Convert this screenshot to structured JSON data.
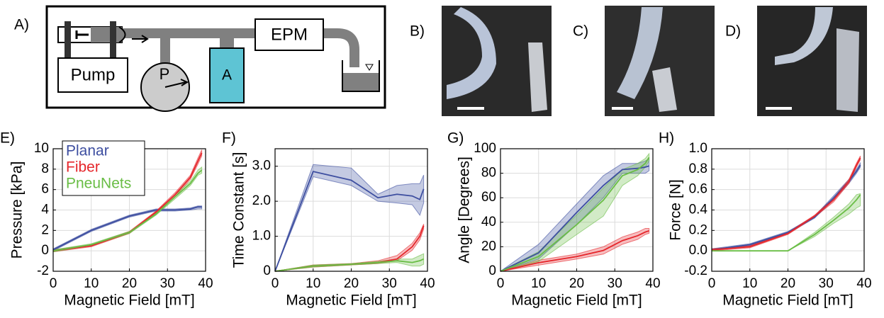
{
  "figure": {
    "diagram": {
      "panel": "A)",
      "pump": "Pump",
      "pressure": "P",
      "accumulator": "A",
      "magnet": "EPM"
    },
    "photos": [
      {
        "panel": "B)"
      },
      {
        "panel": "C)"
      },
      {
        "panel": "D)"
      }
    ]
  },
  "chart_data": [
    {
      "type": "line",
      "panel": "E)",
      "xlabel": "Magnetic Field [mT]",
      "ylabel": "Pressure [kPa]",
      "x": [
        0,
        10,
        20,
        27,
        32,
        36,
        38,
        39
      ],
      "xlim": [
        0,
        40
      ],
      "xticks": [
        0,
        10,
        20,
        30,
        40
      ],
      "ylim": [
        -2,
        10
      ],
      "yticks": [
        -2,
        0,
        2,
        4,
        6,
        8,
        10
      ],
      "grid": true,
      "legend": "upper left",
      "series": [
        {
          "name": "Planar",
          "color": "#3d4ea0",
          "values": [
            0.1,
            2.0,
            3.4,
            4.0,
            4.0,
            4.1,
            4.3,
            4.3
          ],
          "lower": [
            0,
            1.9,
            3.3,
            3.9,
            3.9,
            4.0,
            4.1,
            4.1
          ],
          "upper": [
            0.2,
            2.1,
            3.5,
            4.1,
            4.1,
            4.2,
            4.4,
            4.4
          ]
        },
        {
          "name": "Fiber",
          "color": "#e5262b",
          "values": [
            0,
            0.5,
            1.8,
            3.8,
            5.5,
            7.2,
            8.8,
            9.6
          ],
          "lower": [
            -0.1,
            0.4,
            1.7,
            3.7,
            5.3,
            7.0,
            8.5,
            9.3
          ],
          "upper": [
            0.1,
            0.6,
            1.9,
            3.9,
            5.7,
            7.4,
            9.1,
            9.9
          ]
        },
        {
          "name": "PneuNets",
          "color": "#69bd45",
          "values": [
            0,
            0.6,
            1.8,
            3.6,
            5.3,
            6.6,
            7.6,
            7.9
          ],
          "lower": [
            -0.1,
            0.5,
            1.7,
            3.5,
            5.1,
            6.4,
            7.4,
            7.6
          ],
          "upper": [
            0.1,
            0.7,
            1.9,
            3.7,
            5.5,
            6.8,
            7.9,
            8.2
          ]
        }
      ]
    },
    {
      "type": "line",
      "panel": "F)",
      "xlabel": "Magnetic Field [mT]",
      "ylabel": "Time Constant [s]",
      "x": [
        0,
        10,
        20,
        27,
        32,
        36,
        38,
        39
      ],
      "xlim": [
        0,
        40
      ],
      "xticks": [
        0,
        10,
        20,
        30,
        40
      ],
      "ylim": [
        0,
        3.5
      ],
      "yticks": [
        0,
        {
          "value": 1,
          "label": "1.0"
        },
        {
          "value": 2,
          "label": "2.0"
        },
        {
          "value": 3,
          "label": "3.0"
        }
      ],
      "grid": true,
      "series": [
        {
          "name": "Planar",
          "color": "#3d4ea0",
          "values": [
            0,
            2.85,
            2.6,
            2.1,
            2.2,
            2.15,
            2.05,
            2.35
          ],
          "lower": [
            0,
            2.7,
            2.45,
            2.0,
            1.95,
            1.9,
            1.6,
            1.95
          ],
          "upper": [
            0,
            3.05,
            2.95,
            2.2,
            2.45,
            2.5,
            2.5,
            2.75
          ]
        },
        {
          "name": "Fiber",
          "color": "#e5262b",
          "values": [
            0,
            0.15,
            0.2,
            0.25,
            0.35,
            0.7,
            1.0,
            1.3
          ],
          "lower": [
            0,
            0.12,
            0.18,
            0.22,
            0.3,
            0.6,
            0.9,
            1.2
          ],
          "upper": [
            0,
            0.18,
            0.22,
            0.3,
            0.45,
            0.8,
            1.1,
            1.35
          ]
        },
        {
          "name": "PneuNets",
          "color": "#69bd45",
          "values": [
            0,
            0.15,
            0.2,
            0.25,
            0.3,
            0.25,
            0.3,
            0.35
          ],
          "lower": [
            0,
            0.12,
            0.18,
            0.22,
            0.25,
            0.15,
            0.15,
            0.2
          ],
          "upper": [
            0,
            0.18,
            0.22,
            0.28,
            0.35,
            0.35,
            0.45,
            0.5
          ]
        }
      ]
    },
    {
      "type": "line",
      "panel": "G)",
      "xlabel": "Magnetic Field [mT]",
      "ylabel": "Angle [Degrees]",
      "x": [
        0,
        10,
        20,
        27,
        32,
        36,
        38,
        39
      ],
      "xlim": [
        0,
        40
      ],
      "xticks": [
        0,
        10,
        20,
        30,
        40
      ],
      "ylim": [
        0,
        100
      ],
      "yticks": [
        0,
        20,
        40,
        60,
        80,
        100
      ],
      "grid": true,
      "series": [
        {
          "name": "Planar",
          "color": "#3d4ea0",
          "values": [
            0,
            15,
            48,
            70,
            83,
            84,
            85,
            86
          ],
          "lower": [
            0,
            10,
            38,
            60,
            80,
            80,
            80,
            82
          ],
          "upper": [
            0,
            22,
            55,
            78,
            88,
            88,
            90,
            92
          ]
        },
        {
          "name": "Fiber",
          "color": "#e5262b",
          "values": [
            0,
            7,
            12,
            17,
            25,
            29,
            32,
            33
          ],
          "lower": [
            0,
            5,
            10,
            14,
            22,
            26,
            30,
            31
          ],
          "upper": [
            0,
            9,
            14,
            20,
            28,
            32,
            35,
            35
          ]
        },
        {
          "name": "PneuNets",
          "color": "#69bd45",
          "values": [
            0,
            12,
            38,
            58,
            78,
            83,
            88,
            93
          ],
          "lower": [
            0,
            8,
            30,
            45,
            70,
            78,
            85,
            90
          ],
          "upper": [
            0,
            16,
            46,
            68,
            83,
            88,
            92,
            96
          ]
        }
      ]
    },
    {
      "type": "line",
      "panel": "H)",
      "xlabel": "Magnetic Field [mT]",
      "ylabel": "Force [N]",
      "x": [
        0,
        10,
        20,
        27,
        32,
        36,
        38,
        39
      ],
      "xlim": [
        0,
        40
      ],
      "xticks": [
        0,
        10,
        20,
        30,
        40
      ],
      "ylim": [
        -0.2,
        1
      ],
      "yticks": [
        -0.2,
        {
          "value": 0,
          "label": "0.0"
        },
        0.2,
        0.4,
        0.6,
        0.8,
        {
          "value": 1,
          "label": "1.0"
        }
      ],
      "grid": true,
      "series": [
        {
          "name": "Planar",
          "color": "#3d4ea0",
          "values": [
            0.01,
            0.06,
            0.18,
            0.33,
            0.52,
            0.68,
            0.78,
            0.84
          ],
          "lower": [
            0,
            0.05,
            0.17,
            0.32,
            0.5,
            0.66,
            0.76,
            0.82
          ],
          "upper": [
            0.02,
            0.07,
            0.19,
            0.34,
            0.54,
            0.7,
            0.8,
            0.86
          ]
        },
        {
          "name": "Fiber",
          "color": "#e5262b",
          "values": [
            0.01,
            0.04,
            0.17,
            0.34,
            0.5,
            0.68,
            0.84,
            0.91
          ],
          "lower": [
            0,
            0.03,
            0.16,
            0.33,
            0.48,
            0.66,
            0.82,
            0.89
          ],
          "upper": [
            0.02,
            0.05,
            0.18,
            0.35,
            0.52,
            0.7,
            0.86,
            0.93
          ]
        },
        {
          "name": "PneuNets",
          "color": "#69bd45",
          "values": [
            0,
            0,
            0,
            0.16,
            0.3,
            0.42,
            0.5,
            0.55
          ],
          "lower": [
            0,
            0,
            0,
            0.14,
            0.27,
            0.36,
            0.42,
            0.44
          ],
          "upper": [
            0,
            0,
            0,
            0.18,
            0.33,
            0.46,
            0.55,
            0.56
          ]
        }
      ]
    }
  ]
}
